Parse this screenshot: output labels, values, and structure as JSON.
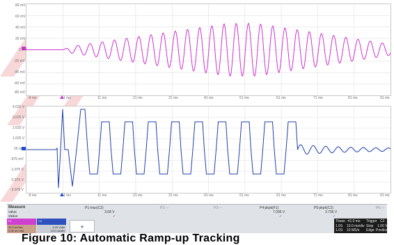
{
  "top_plot": {
    "y_ticks": [
      "80 mV",
      "60 mV",
      "40 mV",
      "20 mV",
      "0 mV",
      "-20 mV",
      "-40 mV",
      "-60 mV",
      "-80 mV"
    ],
    "x_ticks": [
      "-9 ms",
      "1 ms",
      "11 ms",
      "21 ms",
      "31 ms",
      "41 ms",
      "51 ms",
      "61 ms",
      "71 ms",
      "81 ms",
      "91 ms"
    ],
    "trace_color": "#cc33cc",
    "marker_color": "#cc33cc"
  },
  "bottom_plot": {
    "y_ticks": [
      "4.025 V",
      "3.025 V",
      "2.025 V",
      "1.025 V",
      "25 mV",
      "-975 mV",
      "-1.975 V",
      "-2.975 V",
      "-3.975 V"
    ],
    "x_ticks": [
      "-9 ms",
      "1 ms",
      "11 ms",
      "21 ms",
      "31 ms",
      "41 ms",
      "51 ms",
      "61 ms",
      "71 ms",
      "81 ms",
      "91 ms"
    ],
    "trace_color": "#1f3fa8",
    "marker_color": "#1f4fd0"
  },
  "measure": {
    "title": "Measure",
    "row_value_label": "value",
    "row_status_label": "status",
    "p1_name": "P1:max(C2)",
    "p1_value": "3.68 V",
    "p2_name": "P2:---",
    "p3_name": "P3:---",
    "p4_name": "P4:pkpk(F1)",
    "p4_value": "7.096 V",
    "p5_name": "P5:pkpk(C2)",
    "p5_value": "3.796 V",
    "p6_name": "P6:---",
    "check": "✓"
  },
  "channels": {
    "f1_label": "F1",
    "f1_line1": "25.0 mV/div",
    "f1_line2": "0.00 mV ofst",
    "c2_label": "C2",
    "c2_line1": "1.00 V/div",
    "c2_line2": "10.0 ms/div",
    "add": "+"
  },
  "timebase": {
    "label1": "Tbase",
    "value1": "-41.0 ms",
    "label2": "Trigger",
    "value2": "C2",
    "row2a": "1.0S",
    "row2b": "10.0 ms/div",
    "row2c": "Stop",
    "row2d": "1.00 V",
    "row3a": "1.0S",
    "row3b": "10 MS/s",
    "row3c": "Edge",
    "row3d": "Positive"
  },
  "caption": "Figure 10: Automatic Ramp-up Tracking"
}
